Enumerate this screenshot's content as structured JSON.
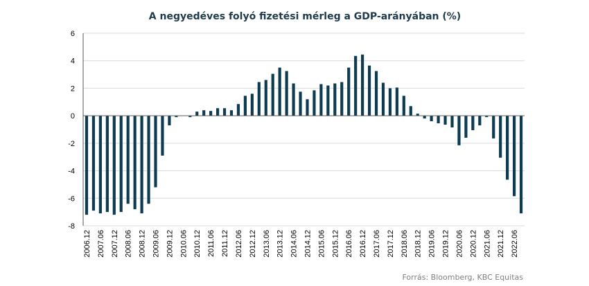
{
  "chart_data": {
    "type": "bar",
    "title": "A negyedéves folyó fizetési mérleg a GDP-arányában (%)",
    "xlabel": "",
    "ylabel": "",
    "ylim": [
      -8,
      6
    ],
    "yticks": [
      6,
      4,
      2,
      0,
      -2,
      -4,
      -6,
      -8
    ],
    "grid": true,
    "bar_color": "#0d3b52",
    "source": "Forrás: Bloomberg,  KBC Equitas",
    "x_tick_labels": [
      "2006.12",
      "2007.06",
      "2007.12",
      "2008.06",
      "2008.12",
      "2009.06",
      "2009.12",
      "2010.06",
      "2010.12",
      "2011.06",
      "2011.12",
      "2012.06",
      "2012.12",
      "2013.06",
      "2013.12",
      "2014.06",
      "2014.12",
      "2015.06",
      "2015.12",
      "2016.06",
      "2016.12",
      "2017.06",
      "2017.12",
      "2018.06",
      "2018.12",
      "2019.06",
      "2019.12",
      "2020.06",
      "2020.12",
      "2021.06",
      "2021.12",
      "2022.06"
    ],
    "categories": [
      "2006.12",
      "2007.03",
      "2007.06",
      "2007.09",
      "2007.12",
      "2008.03",
      "2008.06",
      "2008.09",
      "2008.12",
      "2009.03",
      "2009.06",
      "2009.09",
      "2009.12",
      "2010.03",
      "2010.06",
      "2010.09",
      "2010.12",
      "2011.03",
      "2011.06",
      "2011.09",
      "2011.12",
      "2012.03",
      "2012.06",
      "2012.09",
      "2012.12",
      "2013.03",
      "2013.06",
      "2013.09",
      "2013.12",
      "2014.03",
      "2014.06",
      "2014.09",
      "2014.12",
      "2015.03",
      "2015.06",
      "2015.09",
      "2015.12",
      "2016.03",
      "2016.06",
      "2016.09",
      "2016.12",
      "2017.03",
      "2017.06",
      "2017.09",
      "2017.12",
      "2018.03",
      "2018.06",
      "2018.09",
      "2018.12",
      "2019.03",
      "2019.06",
      "2019.09",
      "2019.12",
      "2020.03",
      "2020.06",
      "2020.09",
      "2020.12",
      "2021.03",
      "2021.06",
      "2021.09",
      "2021.12",
      "2022.03",
      "2022.06",
      "2022.09"
    ],
    "values": [
      -7.2,
      -6.9,
      -7.1,
      -7.0,
      -7.2,
      -7.0,
      -6.4,
      -6.8,
      -7.1,
      -6.4,
      -5.2,
      -2.9,
      -0.7,
      -0.1,
      0.0,
      -0.1,
      0.3,
      0.4,
      0.35,
      0.55,
      0.55,
      0.4,
      0.85,
      1.45,
      1.6,
      2.45,
      2.6,
      3.05,
      3.5,
      3.25,
      2.35,
      1.75,
      1.2,
      1.85,
      2.3,
      2.2,
      2.35,
      2.45,
      3.5,
      4.35,
      4.45,
      3.65,
      3.25,
      2.4,
      2.0,
      2.05,
      1.45,
      0.7,
      0.15,
      -0.2,
      -0.4,
      -0.55,
      -0.65,
      -0.85,
      -2.15,
      -1.6,
      -1.05,
      -0.7,
      -0.1,
      -1.65,
      -3.05,
      -4.65,
      -5.85,
      -7.1
    ]
  }
}
